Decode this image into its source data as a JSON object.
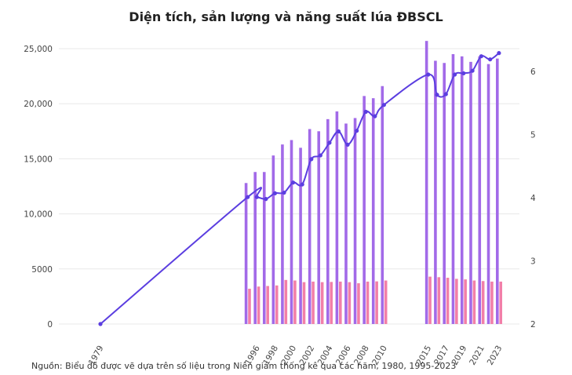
{
  "title": "Diện tích, sản lượng và năng suất lúa ĐBSCL",
  "source": "Nguồn: Biểu đồ được vẽ dựa trên số liệu trong Niên giám thống kê qua các năm, 1980, 1995-2023",
  "colors": {
    "bar_purple": "#a26ae8",
    "bar_pink": "#f27fa8",
    "line": "#5b3ee0",
    "grid": "#e8e8e8"
  },
  "chart_data": {
    "type": "bar",
    "x_tick_labels": [
      "1979",
      "1996",
      "1998",
      "2000",
      "2002",
      "2004",
      "2006",
      "2008",
      "2010",
      "2015",
      "2017",
      "2019",
      "2021",
      "2023"
    ],
    "y_left_ticks": [
      "0",
      "5000",
      "10,000",
      "15,000",
      "20,000",
      "25,000"
    ],
    "y_right_ticks": [
      "2",
      "3",
      "4",
      "5",
      "6"
    ],
    "ylim_left": [
      0,
      25000
    ],
    "ylim_right": [
      2,
      6.4
    ],
    "grid": true,
    "years": [
      1995,
      1996,
      1997,
      1998,
      1999,
      2000,
      2001,
      2002,
      2003,
      2004,
      2005,
      2006,
      2007,
      2008,
      2009,
      2010,
      2015,
      2016,
      2017,
      2018,
      2019,
      2020,
      2021,
      2022,
      2023
    ],
    "series": [
      {
        "values": [
          12800,
          13800,
          13800,
          15300,
          16300,
          16700,
          16000,
          17700,
          17500,
          18600,
          19300,
          18200,
          18700,
          20700,
          20500,
          21600,
          25700,
          23900,
          23700,
          24500,
          24300,
          23800,
          24300,
          23600,
          24100
        ],
        "axis": "left"
      },
      {
        "values": [
          3200,
          3400,
          3450,
          3500,
          4000,
          3950,
          3800,
          3850,
          3800,
          3820,
          3850,
          3800,
          3700,
          3850,
          3870,
          3950,
          4300,
          4250,
          4200,
          4100,
          4050,
          3950,
          3900,
          3850,
          3850
        ],
        "axis": "left"
      },
      {
        "x": [
          1979,
          1995,
          1996,
          1997,
          1998,
          1999,
          2000,
          2001,
          2002,
          2003,
          2004,
          2005,
          2006,
          2007,
          2008,
          2009,
          2010,
          2015,
          2016,
          2017,
          2018,
          2019,
          2020,
          2021,
          2022,
          2023
        ],
        "values": [
          2.0,
          4.01,
          4.01,
          3.98,
          4.07,
          4.08,
          4.24,
          4.21,
          4.61,
          4.67,
          4.87,
          5.05,
          4.84,
          5.06,
          5.36,
          5.29,
          5.47,
          5.95,
          5.63,
          5.64,
          5.95,
          5.97,
          6.01,
          6.24,
          6.19,
          6.29
        ],
        "axis": "right"
      }
    ]
  }
}
